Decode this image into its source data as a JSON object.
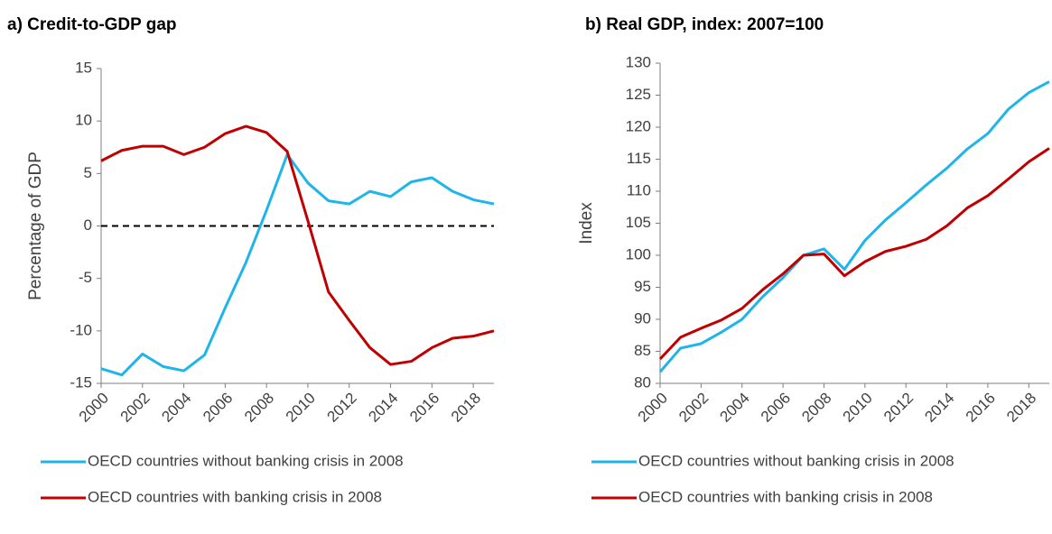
{
  "chart_data": [
    {
      "type": "line",
      "title": "a) Credit-to-GDP gap",
      "y_label": "Percentage of GDP",
      "x": [
        2000,
        2001,
        2002,
        2003,
        2004,
        2005,
        2006,
        2007,
        2008,
        2009,
        2010,
        2011,
        2012,
        2013,
        2014,
        2015,
        2016,
        2017,
        2018,
        2019
      ],
      "xlim": [
        2000,
        2019
      ],
      "xticks": [
        2000,
        2002,
        2004,
        2006,
        2008,
        2010,
        2012,
        2014,
        2016,
        2018
      ],
      "ylim": [
        -15,
        15
      ],
      "yticks": [
        -15,
        -10,
        -5,
        0,
        5,
        10,
        15
      ],
      "reference_line": 0,
      "series": [
        {
          "name": "OECD countries without banking crisis in 2008",
          "color": "#1fb5ea",
          "values": [
            -13.6,
            -14.2,
            -12.2,
            -13.4,
            -13.8,
            -12.3,
            -7.8,
            -3.5,
            1.5,
            6.8,
            4.1,
            2.4,
            2.1,
            3.3,
            2.8,
            4.2,
            4.6,
            3.3,
            2.5,
            2.1
          ]
        },
        {
          "name": "OECD countries with banking crisis in 2008",
          "color": "#c00000",
          "values": [
            6.2,
            7.2,
            7.6,
            7.6,
            6.8,
            7.5,
            8.8,
            9.5,
            8.9,
            7.1,
            0.5,
            -6.3,
            -9.0,
            -11.6,
            -13.2,
            -12.9,
            -11.6,
            -10.7,
            -10.5,
            -10.0
          ]
        }
      ]
    },
    {
      "type": "line",
      "title": "b) Real GDP, index: 2007=100",
      "y_label": "Index",
      "x": [
        2000,
        2001,
        2002,
        2003,
        2004,
        2005,
        2006,
        2007,
        2008,
        2009,
        2010,
        2011,
        2012,
        2013,
        2014,
        2015,
        2016,
        2017,
        2018,
        2019
      ],
      "xlim": [
        2000,
        2019
      ],
      "xticks": [
        2000,
        2002,
        2004,
        2006,
        2008,
        2010,
        2012,
        2014,
        2016,
        2018
      ],
      "ylim": [
        80,
        130
      ],
      "yticks": [
        80,
        85,
        90,
        95,
        100,
        105,
        110,
        115,
        120,
        125,
        130
      ],
      "series": [
        {
          "name": "OECD countries without banking crisis in 2008",
          "color": "#1fb5ea",
          "values": [
            81.8,
            85.5,
            86.2,
            88.0,
            90.0,
            93.5,
            96.5,
            100,
            101,
            97.8,
            102.3,
            105.5,
            108.2,
            111.0,
            113.6,
            116.6,
            119.0,
            122.8,
            125.4,
            127.1
          ]
        },
        {
          "name": "OECD countries with banking crisis in 2008",
          "color": "#c00000",
          "values": [
            83.8,
            87.2,
            88.6,
            89.9,
            91.7,
            94.6,
            97.1,
            100,
            100.2,
            96.8,
            99.0,
            100.6,
            101.4,
            102.5,
            104.6,
            107.4,
            109.3,
            111.9,
            114.6,
            116.7
          ]
        }
      ]
    }
  ]
}
